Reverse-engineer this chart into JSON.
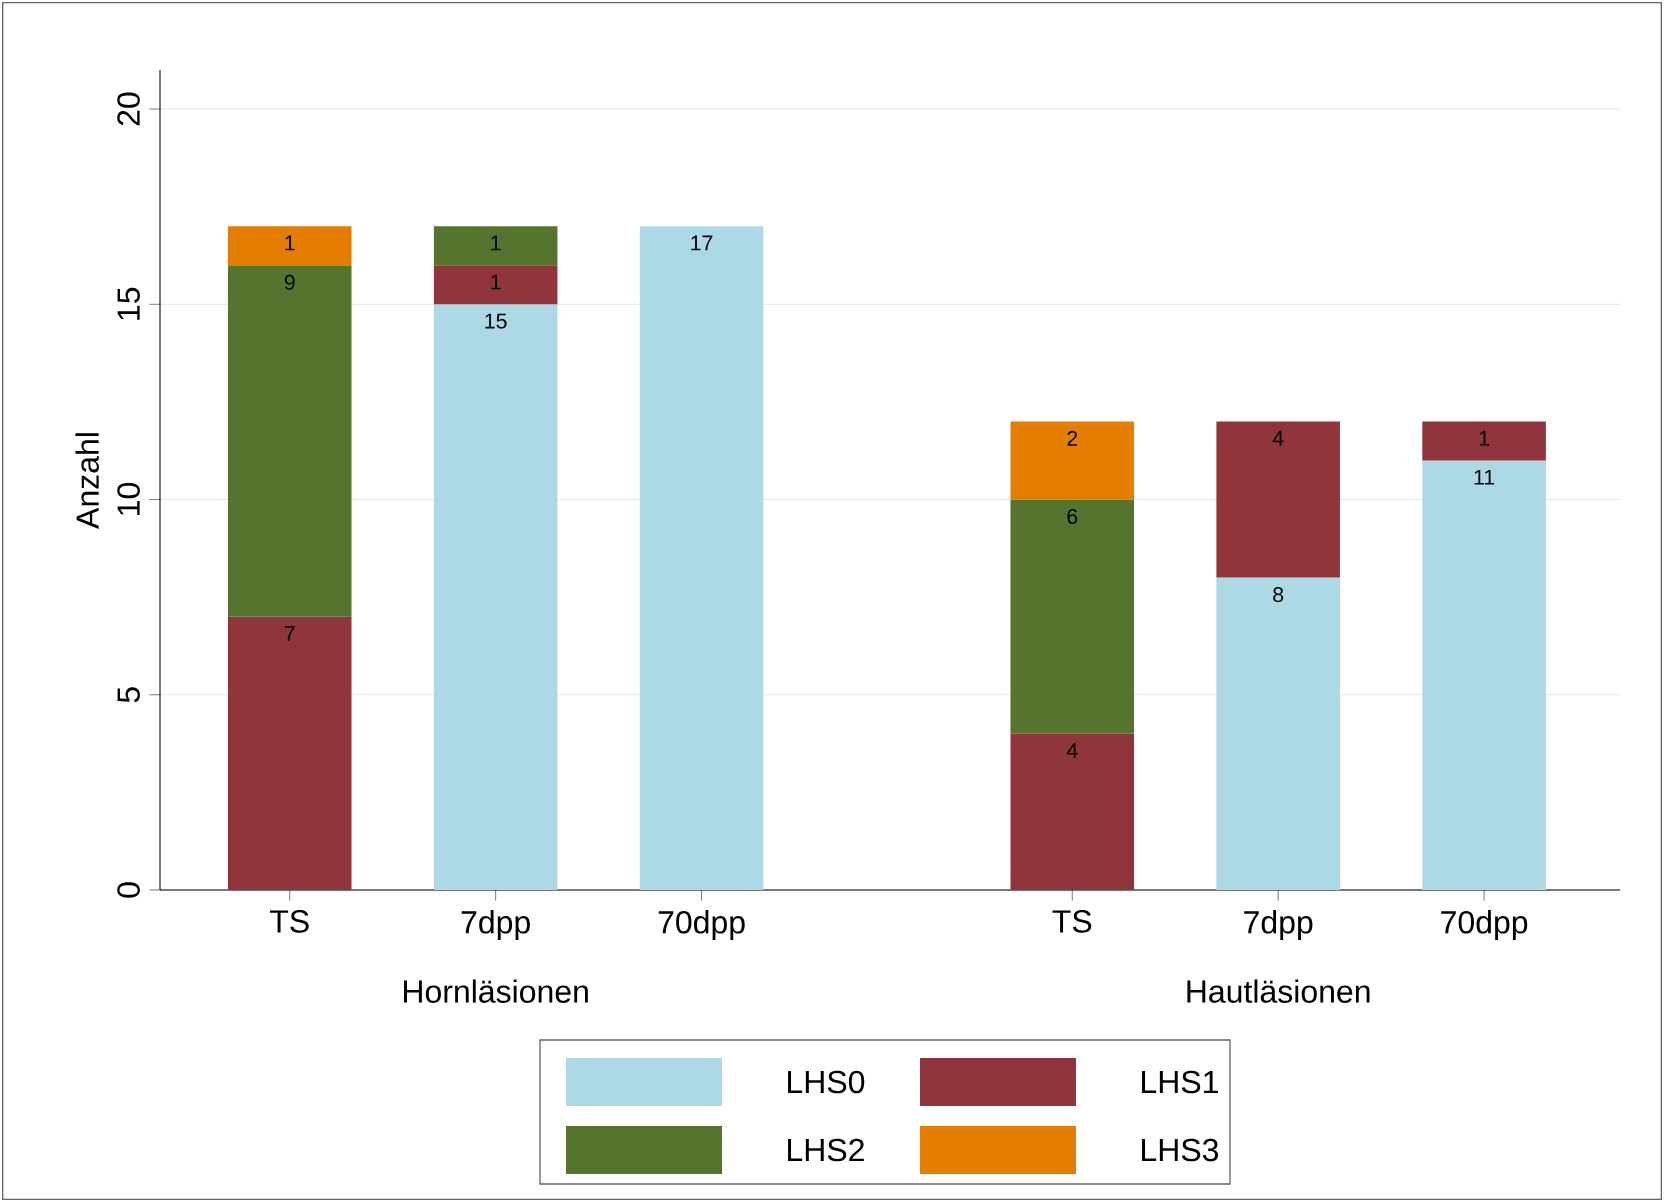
{
  "chart_data": {
    "type": "bar",
    "stacked": true,
    "ylabel": "Anzahl",
    "categories": [
      "TS",
      "7dpp",
      "70dpp",
      "TS",
      "7dpp",
      "70dpp"
    ],
    "series": [
      {
        "name": "LHS0",
        "color": "#add8e6",
        "values": [
          null,
          15,
          17,
          null,
          8,
          11
        ]
      },
      {
        "name": "LHS1",
        "color": "#90353b",
        "values": [
          7,
          1,
          null,
          4,
          4,
          1
        ]
      },
      {
        "name": "LHS2",
        "color": "#55752f",
        "values": [
          9,
          1,
          null,
          6,
          null,
          null
        ]
      },
      {
        "name": "LHS3",
        "color": "#e37e00",
        "values": [
          1,
          null,
          null,
          2,
          null,
          null
        ]
      }
    ],
    "annotations": [
      "Hornläsionen",
      "Hautläsionen"
    ],
    "ylim": [
      0,
      21
    ],
    "yticks": [
      0,
      5,
      10,
      15,
      20
    ],
    "grid": "y",
    "data_labels": true,
    "legend": "bottom"
  }
}
